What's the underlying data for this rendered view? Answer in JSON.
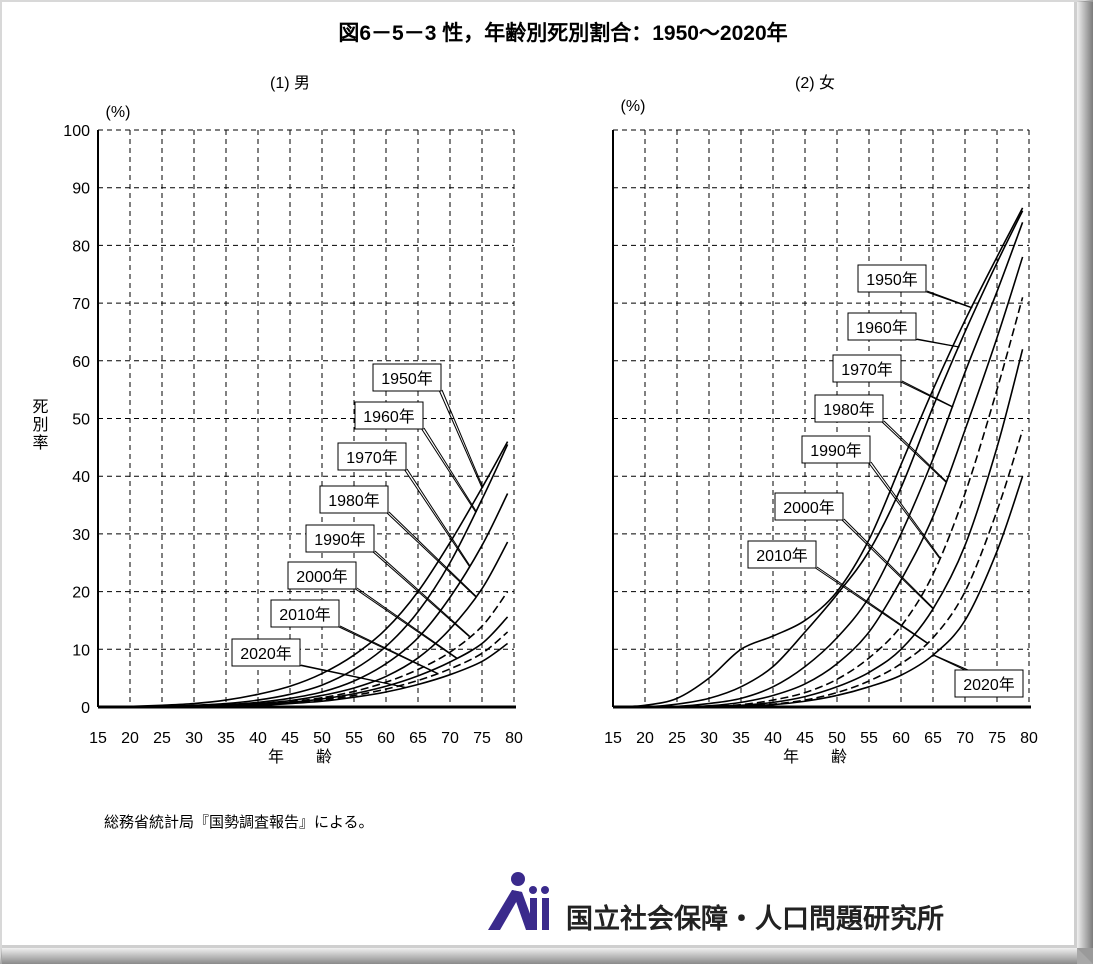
{
  "title": "図6－5－3 性，年齢別死別割合：1950～2020年",
  "source_note": "総務省統計局『国勢調査報告』による。",
  "logo_text": "国立社会保障・人口問題研究所",
  "colors": {
    "line": "#000000",
    "grid": "#000000",
    "background": "#ffffff",
    "logo": "#3a2a8c"
  },
  "chart_data": [
    {
      "type": "line",
      "title": "(1) 男",
      "ylabel": "死別率",
      "yunit": "(%)",
      "xlabel": "年　　齢",
      "xlim": [
        15,
        80
      ],
      "ylim": [
        0,
        100
      ],
      "xticks": [
        15,
        20,
        25,
        30,
        35,
        40,
        45,
        50,
        55,
        60,
        65,
        70,
        75,
        80
      ],
      "yticks": [
        0,
        10,
        20,
        30,
        40,
        50,
        60,
        70,
        80,
        90,
        100
      ],
      "grid": true,
      "x": [
        15,
        20,
        25,
        30,
        35,
        40,
        45,
        50,
        55,
        60,
        65,
        70,
        75,
        79
      ],
      "series": [
        {
          "name": "1950年",
          "dashed": false,
          "values": [
            0,
            0.1,
            0.3,
            0.6,
            1.2,
            2.2,
            3.6,
            5.8,
            9,
            13.5,
            20,
            28.5,
            38,
            46
          ]
        },
        {
          "name": "1960年",
          "dashed": false,
          "values": [
            0,
            0,
            0.1,
            0.3,
            0.6,
            1.2,
            2.2,
            3.8,
            6.5,
            10.5,
            16.5,
            25,
            36,
            45.5
          ]
        },
        {
          "name": "1970年",
          "dashed": false,
          "values": [
            0,
            0,
            0.1,
            0.2,
            0.4,
            0.8,
            1.5,
            2.6,
            4.5,
            7.5,
            12,
            19,
            28,
            37
          ]
        },
        {
          "name": "1980年",
          "dashed": false,
          "values": [
            0,
            0,
            0,
            0.1,
            0.3,
            0.6,
            1.1,
            2,
            3.3,
            5.3,
            8.5,
            13.5,
            20.5,
            28.6
          ]
        },
        {
          "name": "1990年",
          "dashed": true,
          "values": [
            0,
            0,
            0,
            0.1,
            0.2,
            0.5,
            0.9,
            1.6,
            2.7,
            4.3,
            6.5,
            9.5,
            14,
            20
          ]
        },
        {
          "name": "2000年",
          "dashed": false,
          "values": [
            0,
            0,
            0,
            0.1,
            0.2,
            0.4,
            0.8,
            1.4,
            2.3,
            3.6,
            5.4,
            7.8,
            11,
            15.6
          ]
        },
        {
          "name": "2010年",
          "dashed": true,
          "values": [
            0,
            0,
            0,
            0.1,
            0.2,
            0.4,
            0.7,
            1.2,
            2,
            3.1,
            4.6,
            6.6,
            9.3,
            13
          ]
        },
        {
          "name": "2020年",
          "dashed": false,
          "values": [
            0,
            0,
            0,
            0.1,
            0.2,
            0.3,
            0.6,
            1,
            1.7,
            2.6,
            3.9,
            5.6,
            7.9,
            11
          ]
        }
      ]
    },
    {
      "type": "line",
      "title": "(2) 女",
      "yunit": "(%)",
      "xlabel": "年　　齢",
      "xlim": [
        15,
        80
      ],
      "ylim": [
        0,
        100
      ],
      "xticks": [
        15,
        20,
        25,
        30,
        35,
        40,
        45,
        50,
        55,
        60,
        65,
        70,
        75,
        80
      ],
      "grid": true,
      "x": [
        15,
        20,
        25,
        30,
        35,
        40,
        45,
        50,
        55,
        60,
        65,
        70,
        75,
        79
      ],
      "series": [
        {
          "name": "1950年",
          "dashed": false,
          "values": [
            0,
            0.3,
            1.5,
            5,
            10,
            12.3,
            15,
            20,
            29,
            42,
            55,
            67,
            78,
            86.5
          ]
        },
        {
          "name": "1960年",
          "dashed": false,
          "values": [
            0,
            0,
            0.5,
            1.5,
            3.5,
            7,
            13,
            19.5,
            27,
            38,
            52,
            65,
            77,
            86
          ]
        },
        {
          "name": "1970年",
          "dashed": false,
          "values": [
            0,
            0,
            0.1,
            0.6,
            1.5,
            3.5,
            7,
            12,
            19,
            30,
            43,
            58,
            72,
            84
          ]
        },
        {
          "name": "1980年",
          "dashed": false,
          "values": [
            0,
            0,
            0,
            0.2,
            0.8,
            2,
            4,
            7.5,
            13,
            22,
            33,
            48,
            64,
            78
          ]
        },
        {
          "name": "1990年",
          "dashed": true,
          "values": [
            0,
            0,
            0,
            0.1,
            0.4,
            1.2,
            2.5,
            4.8,
            8.5,
            14,
            23,
            37,
            55,
            71
          ]
        },
        {
          "name": "2000年",
          "dashed": false,
          "values": [
            0,
            0,
            0,
            0.1,
            0.3,
            0.8,
            1.8,
            3.5,
            6,
            10,
            17,
            28,
            45,
            62
          ]
        },
        {
          "name": "2010年",
          "dashed": true,
          "values": [
            0,
            0,
            0,
            0.1,
            0.2,
            0.5,
            1.2,
            2.5,
            4.5,
            7.5,
            12,
            20,
            34,
            48
          ]
        },
        {
          "name": "2020年",
          "dashed": false,
          "values": [
            0,
            0,
            0,
            0.1,
            0.2,
            0.4,
            1,
            2,
            3.5,
            5.5,
            9,
            15,
            27,
            40
          ]
        }
      ]
    }
  ]
}
